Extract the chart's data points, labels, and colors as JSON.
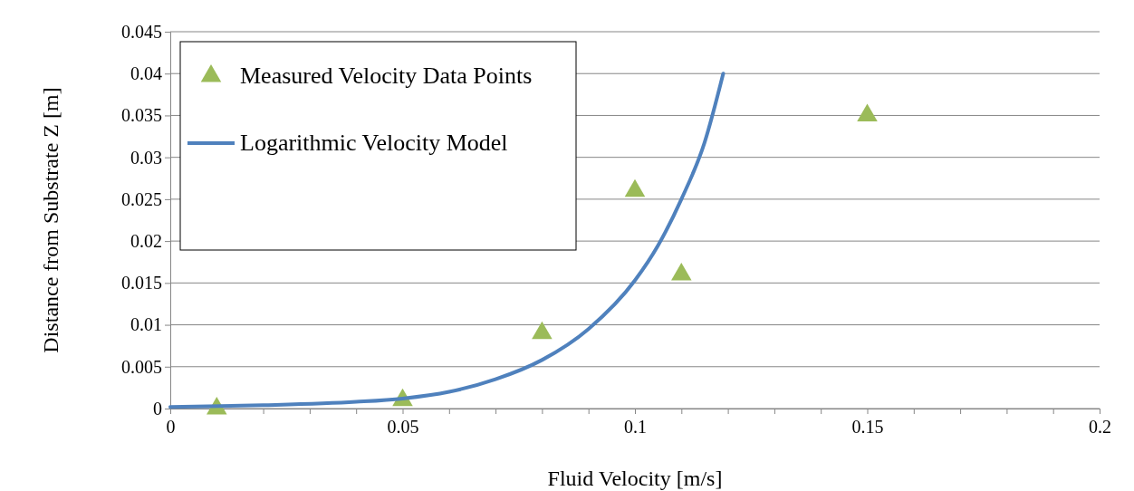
{
  "chart_data": {
    "type": "scatter",
    "xlabel": "Fluid Velocity [m/s]",
    "ylabel": "Distance from Substrate Z [m]",
    "xlim": [
      0,
      0.2
    ],
    "xticks": [
      0,
      {
        "value": 0.01,
        "label": null
      },
      {
        "value": 0.02,
        "label": null
      },
      {
        "value": 0.03,
        "label": null
      },
      {
        "value": 0.04,
        "label": null
      },
      0.05,
      {
        "value": 0.06,
        "label": null
      },
      {
        "value": 0.07,
        "label": null
      },
      {
        "value": 0.08,
        "label": null
      },
      {
        "value": 0.09,
        "label": null
      },
      0.1,
      {
        "value": 0.11,
        "label": null
      },
      {
        "value": 0.12,
        "label": null
      },
      {
        "value": 0.13,
        "label": null
      },
      {
        "value": 0.14,
        "label": null
      },
      0.15,
      {
        "value": 0.16,
        "label": null
      },
      {
        "value": 0.17,
        "label": null
      },
      {
        "value": 0.18,
        "label": null
      },
      {
        "value": 0.19,
        "label": null
      },
      0.2
    ],
    "ylim": [
      0,
      0.045
    ],
    "yticks": [
      0,
      0.005,
      0.01,
      0.015,
      0.02,
      0.025,
      0.03,
      0.035,
      0.04,
      0.045
    ],
    "grid": "y",
    "legend": "top left",
    "series": [
      {
        "name": "Measured Velocity Data Points",
        "marker": "triangle",
        "color": "#9bbb59",
        "x": [
          0.01,
          0.05,
          0.08,
          0.1,
          0.11,
          0.15
        ],
        "values": [
          0,
          0.001,
          0.009,
          0.026,
          0.016,
          0.035
        ]
      },
      {
        "name": "Logarithmic Velocity Model",
        "type": "line",
        "marker": "none",
        "color": "#4f81bd",
        "x": [
          0,
          0.02,
          0.04,
          0.05,
          0.06,
          0.07,
          0.08,
          0.09,
          0.1,
          0.105,
          0.11,
          0.115,
          0.119
        ],
        "values": [
          0.0002,
          0.0004,
          0.0008,
          0.0012,
          0.002,
          0.0035,
          0.0058,
          0.0095,
          0.0153,
          0.0195,
          0.025,
          0.0318,
          0.04
        ]
      }
    ]
  }
}
